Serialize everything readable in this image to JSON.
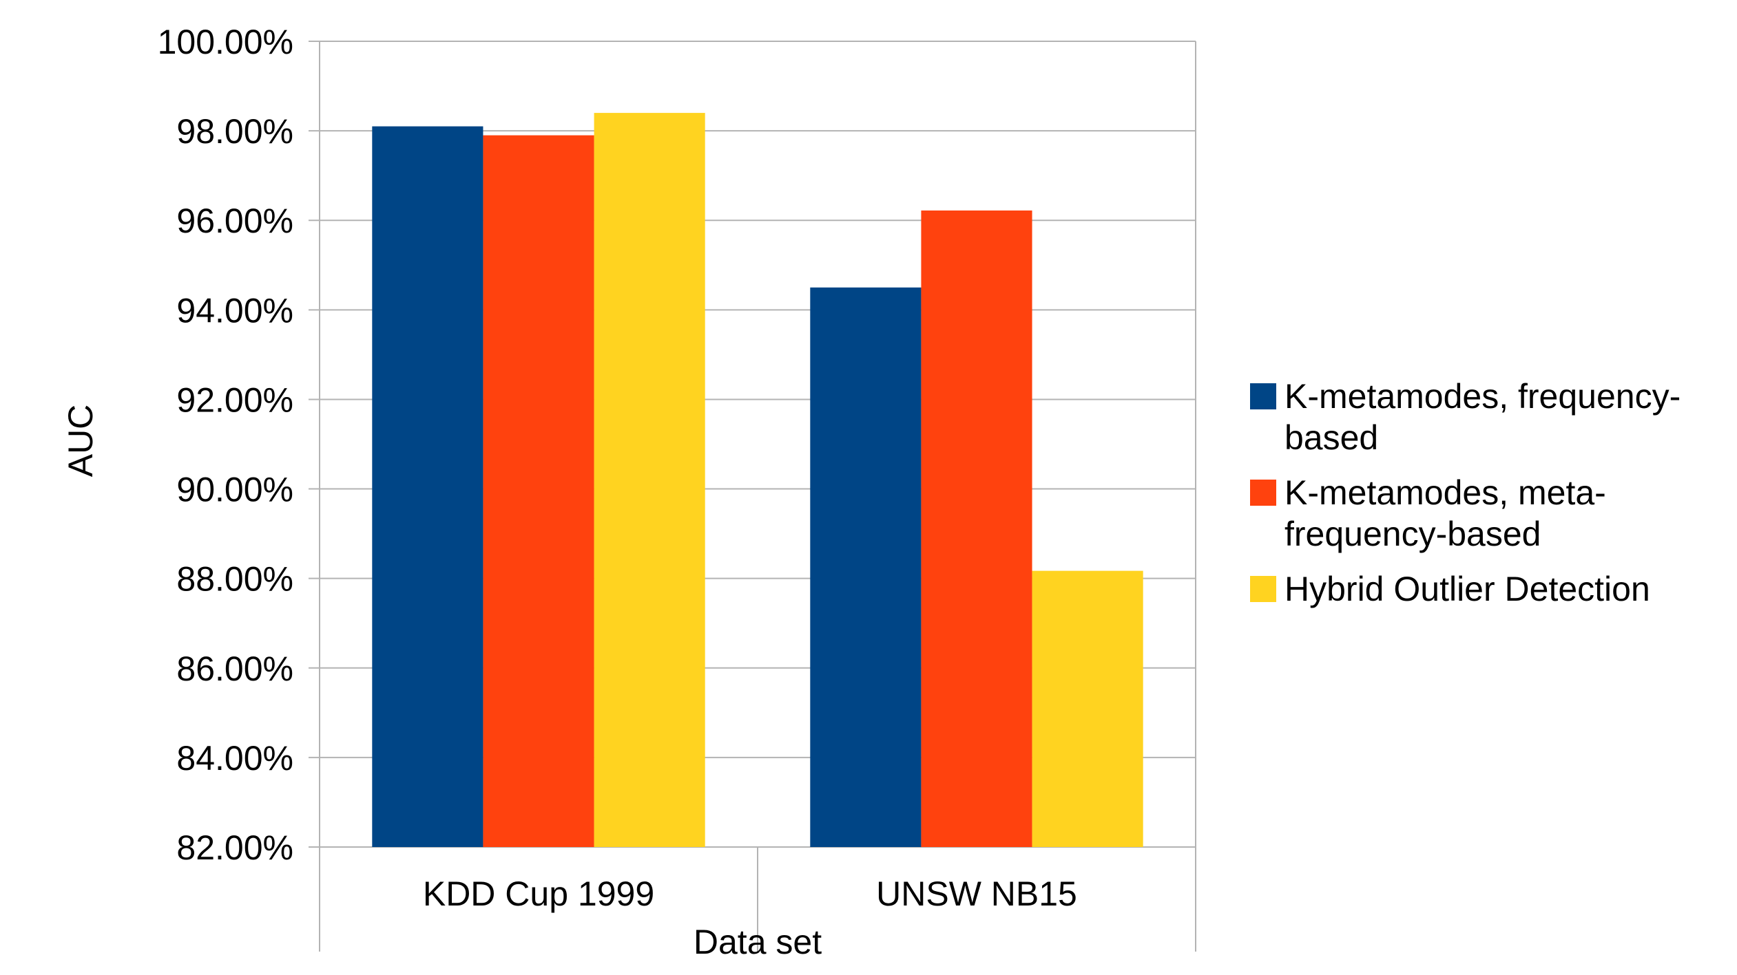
{
  "chart_data": {
    "type": "bar",
    "title": "",
    "xlabel": "Data set",
    "ylabel": "AUC",
    "categories": [
      "KDD Cup 1999",
      "UNSW NB15"
    ],
    "series": [
      {
        "name": "K-metamodes, frequency-based",
        "values": [
          98.1,
          94.5
        ],
        "color": "#004586"
      },
      {
        "name": "K-metamodes, meta-frequency-based",
        "values": [
          97.9,
          96.22
        ],
        "color": "#ff420e"
      },
      {
        "name": "Hybrid Outlier Detection",
        "values": [
          98.4,
          88.17
        ],
        "color": "#ffd320"
      }
    ],
    "ylim": [
      82,
      100
    ],
    "yticks": [
      "82.00%",
      "84.00%",
      "86.00%",
      "88.00%",
      "90.00%",
      "92.00%",
      "94.00%",
      "96.00%",
      "98.00%",
      "100.00%"
    ],
    "grid": true,
    "legend_position": "right",
    "legend_lines": [
      [
        "K-metamodes, frequency-",
        "based"
      ],
      [
        "K-metamodes, meta-",
        "frequency-based"
      ],
      [
        "Hybrid Outlier Detection"
      ]
    ]
  }
}
